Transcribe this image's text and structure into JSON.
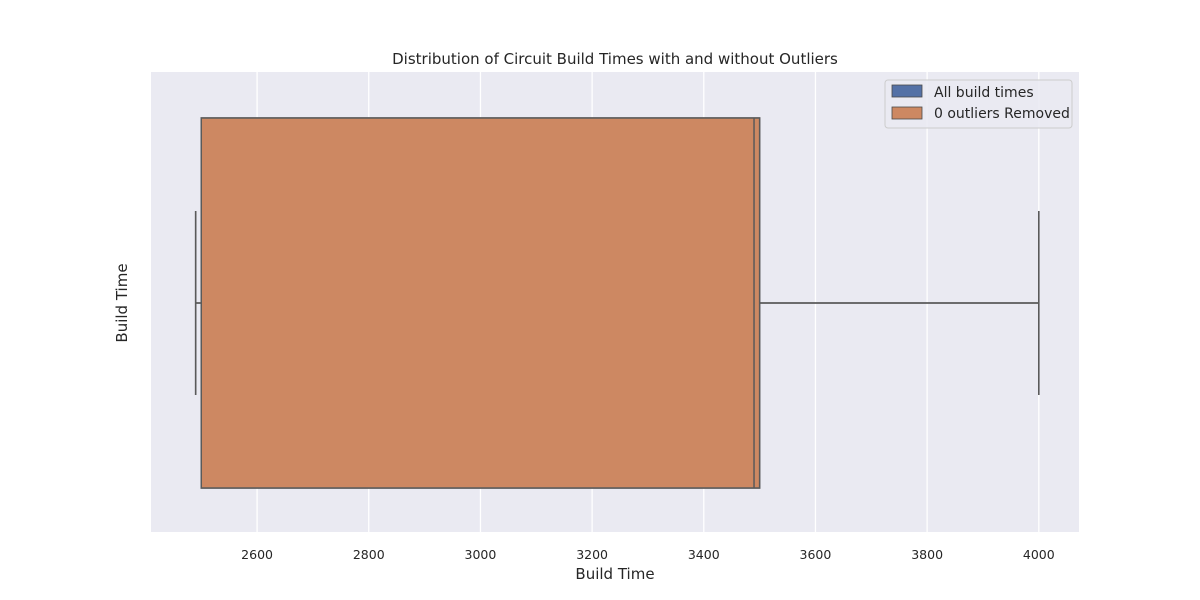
{
  "chart_data": {
    "type": "box",
    "title": "Distribution of Circuit Build Times with and without Outliers",
    "xlabel": "Build Time",
    "ylabel": "Build Time",
    "xlim": [
      2410,
      4072
    ],
    "xticks": [
      2600,
      2800,
      3000,
      3200,
      3400,
      3600,
      3800,
      4000
    ],
    "grid": true,
    "legend_position": "top-right",
    "orientation": "horizontal",
    "series": [
      {
        "name": "All build times",
        "color": "#5471a6",
        "min": 2490,
        "q1": 2500,
        "median": 3490,
        "q3": 3500,
        "max": 4000
      },
      {
        "name": "0 outliers Removed",
        "color": "#cd8862",
        "min": 2490,
        "q1": 2500,
        "median": 3490,
        "q3": 3500,
        "max": 4000
      }
    ]
  },
  "colors": {
    "plot_background": "#eaeaf2",
    "grid": "#ffffff",
    "line": "#5a5a5a",
    "legend_background": "#eaeaf2"
  }
}
